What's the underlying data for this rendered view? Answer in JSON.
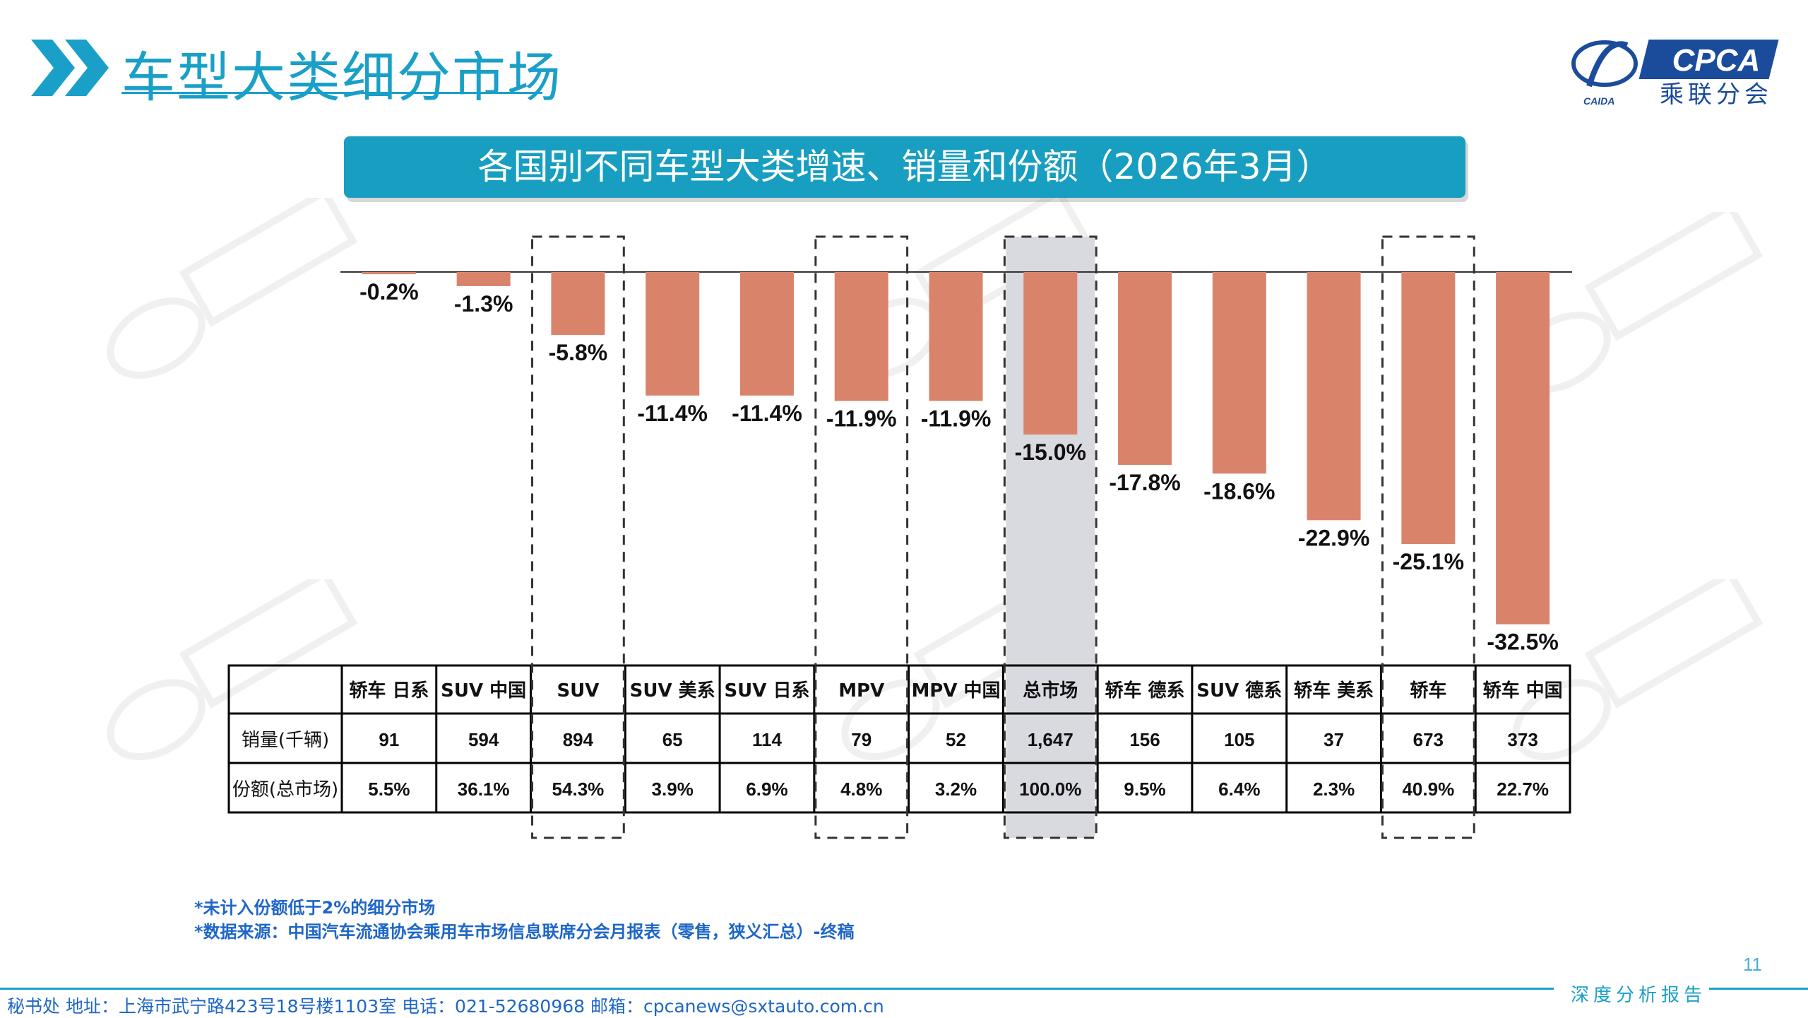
{
  "header": {
    "title": "车型大类细分市场"
  },
  "logo": {
    "brand": "CPCA",
    "sub": "乘联分会",
    "small": "CAIDA"
  },
  "banner": {
    "title": "各国别不同车型大类增速、销量和份额（2026年3月）"
  },
  "chart_data": {
    "type": "bar",
    "categories": [
      "轿车 日系",
      "SUV 中国",
      "SUV",
      "SUV 美系",
      "SUV 日系",
      "MPV",
      "MPV 中国",
      "总市场",
      "轿车 德系",
      "SUV 德系",
      "轿车 美系",
      "轿车",
      "轿车 中国"
    ],
    "values": [
      -0.2,
      -1.3,
      -5.8,
      -11.4,
      -11.4,
      -11.9,
      -11.9,
      -15.0,
      -17.8,
      -18.6,
      -22.9,
      -25.1,
      -32.5
    ],
    "value_labels": [
      "-0.2%",
      "-1.3%",
      "-5.8%",
      "-11.4%",
      "-11.4%",
      "-11.9%",
      "-11.9%",
      "-15.0%",
      "-17.8%",
      "-18.6%",
      "-22.9%",
      "-25.1%",
      "-32.5%"
    ],
    "ylim": [
      -35,
      0
    ],
    "bar_color": "#d9846a",
    "highlight_total_color": "#d9d9e0",
    "dashed_groups": [
      2,
      5,
      11
    ],
    "highlight_index": 7,
    "table": {
      "rows": [
        {
          "label": "销量(千辆)",
          "values": [
            "91",
            "594",
            "894",
            "65",
            "114",
            "79",
            "52",
            "1,647",
            "156",
            "105",
            "37",
            "673",
            "373"
          ]
        },
        {
          "label": "份额(总市场)",
          "values": [
            "5.5%",
            "36.1%",
            "54.3%",
            "3.9%",
            "6.9%",
            "4.8%",
            "3.2%",
            "100.0%",
            "9.5%",
            "6.4%",
            "2.3%",
            "40.9%",
            "22.7%"
          ]
        }
      ]
    }
  },
  "footnotes": [
    "*未计入份额低于2%的细分市场",
    "*数据来源：中国汽车流通协会乘用车市场信息联席分会月报表（零售，狭义汇总）-终稿"
  ],
  "footer": {
    "contact": "秘书处  地址：上海市武宁路423号18号楼1103室  电话：021-52680968  邮箱：cpcanews@sxtauto.com.cn",
    "tag": "深度分析报告",
    "page": "11"
  }
}
